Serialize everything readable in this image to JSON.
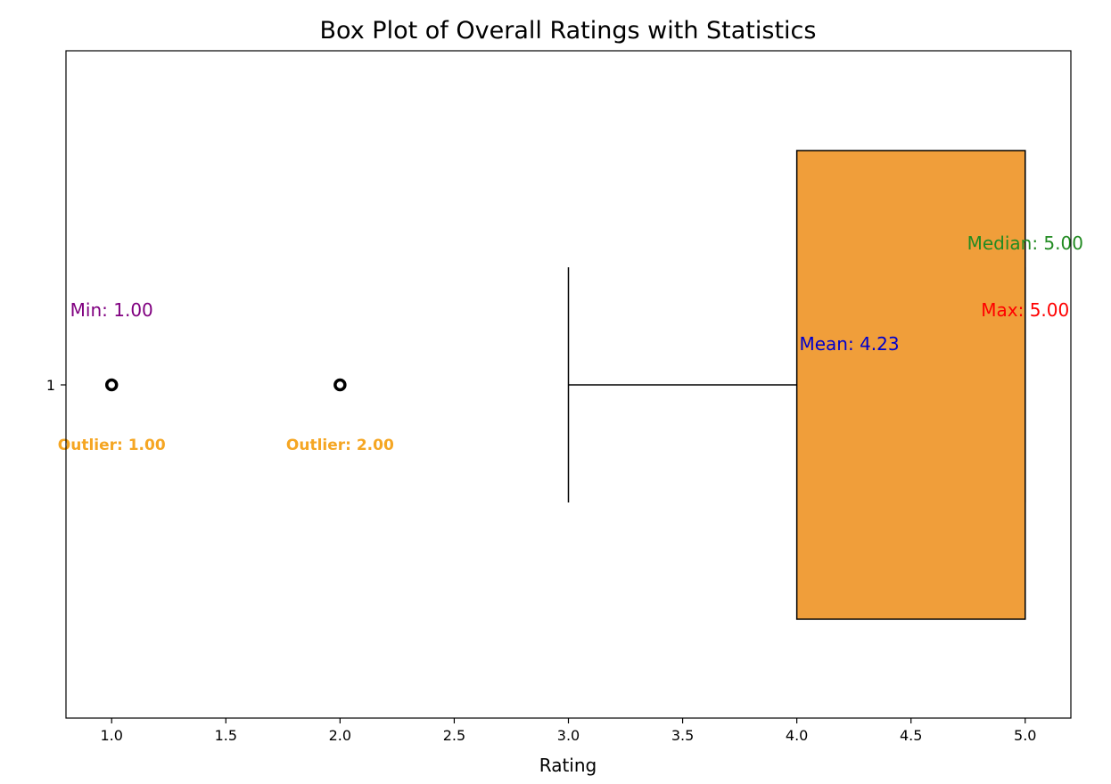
{
  "chart_data": {
    "type": "box",
    "orientation": "horizontal",
    "title": "Box Plot of Overall Ratings with Statistics",
    "xlabel": "Rating",
    "ylabel": "",
    "xlim": [
      0.8,
      5.2
    ],
    "xticks": [
      "1.0",
      "1.5",
      "2.0",
      "2.5",
      "3.0",
      "3.5",
      "4.0",
      "4.5",
      "5.0"
    ],
    "yticks": [
      "1"
    ],
    "grid": false,
    "legend": "none",
    "box": {
      "category": "1",
      "whisker_low": 3.0,
      "q1": 4.0,
      "median": 5.0,
      "q3": 5.0,
      "whisker_high": 5.0,
      "outliers": [
        1.0,
        2.0
      ],
      "fill_color": "#f09e3a",
      "edge_color": "#000000"
    },
    "annotations": {
      "min": {
        "label": "Min: 1.00",
        "value": 1.0,
        "color": "#800080"
      },
      "max": {
        "label": "Max: 5.00",
        "value": 5.0,
        "color": "#ff0000"
      },
      "median": {
        "label": "Median: 5.00",
        "value": 5.0,
        "color": "#228b22"
      },
      "mean": {
        "label": "Mean: 4.23",
        "value": 4.23,
        "color": "#0000cc"
      },
      "outliers": [
        {
          "label": "Outlier: 1.00",
          "value": 1.0,
          "color": "#f5a623"
        },
        {
          "label": "Outlier: 2.00",
          "value": 2.0,
          "color": "#f5a623"
        }
      ]
    }
  }
}
